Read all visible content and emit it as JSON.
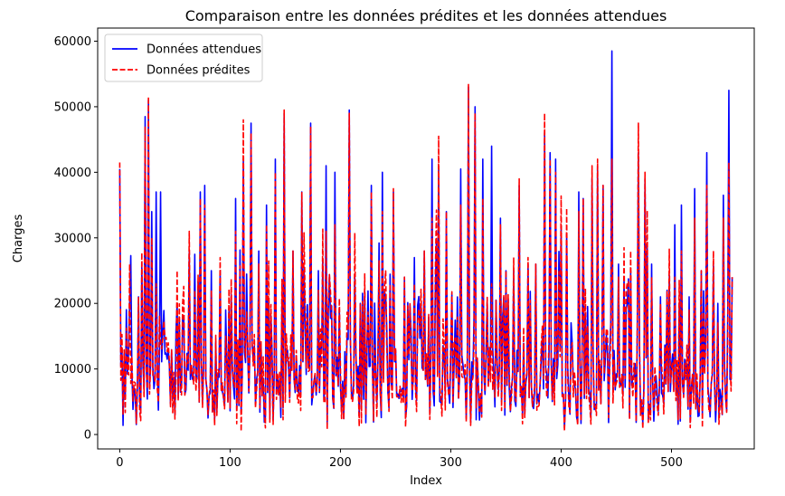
{
  "chart_data": {
    "type": "line",
    "title": "Comparaison entre les données prédites et les données attendues",
    "xlabel": "Index",
    "ylabel": "Charges",
    "xlim": [
      -20,
      575
    ],
    "ylim": [
      -2200,
      62000
    ],
    "xticks": [
      0,
      100,
      200,
      300,
      400,
      500
    ],
    "yticks": [
      0,
      10000,
      20000,
      30000,
      40000,
      50000,
      60000
    ],
    "grid": false,
    "legend": "top-left",
    "n_points": 556,
    "series": [
      {
        "name": "Données attendues",
        "color": "#0000ff",
        "linestyle": "solid",
        "peaks": [
          [
            0,
            40500
          ],
          [
            3,
            1400
          ],
          [
            9,
            20000
          ],
          [
            17,
            21000
          ],
          [
            23,
            48500
          ],
          [
            26,
            51000
          ],
          [
            29,
            34000
          ],
          [
            33,
            37000
          ],
          [
            37,
            37000
          ],
          [
            52,
            20000
          ],
          [
            57,
            18000
          ],
          [
            63,
            28000
          ],
          [
            68,
            27500
          ],
          [
            73,
            37000
          ],
          [
            77,
            38000
          ],
          [
            83,
            25000
          ],
          [
            91,
            25000
          ],
          [
            96,
            19000
          ],
          [
            105,
            36000
          ],
          [
            112,
            42000
          ],
          [
            119,
            47500
          ],
          [
            126,
            28000
          ],
          [
            133,
            35000
          ],
          [
            141,
            42000
          ],
          [
            149,
            49000
          ],
          [
            157,
            28000
          ],
          [
            165,
            37000
          ],
          [
            173,
            47500
          ],
          [
            180,
            25000
          ],
          [
            187,
            41000
          ],
          [
            195,
            40000
          ],
          [
            208,
            49500
          ],
          [
            218,
            20000
          ],
          [
            228,
            38000
          ],
          [
            238,
            40000
          ],
          [
            248,
            37000
          ],
          [
            258,
            24000
          ],
          [
            267,
            27000
          ],
          [
            276,
            28000
          ],
          [
            283,
            42000
          ],
          [
            289,
            41000
          ],
          [
            296,
            34000
          ],
          [
            309,
            40500
          ],
          [
            316,
            53000
          ],
          [
            322,
            50000
          ],
          [
            329,
            42000
          ],
          [
            337,
            44000
          ],
          [
            345,
            33000
          ],
          [
            350,
            25000
          ],
          [
            357,
            25000
          ],
          [
            362,
            38000
          ],
          [
            370,
            26000
          ],
          [
            377,
            26000
          ],
          [
            385,
            46000
          ],
          [
            390,
            43000
          ],
          [
            395,
            42000
          ],
          [
            403,
            1000
          ],
          [
            410,
            14000
          ],
          [
            416,
            37000
          ],
          [
            420,
            36000
          ],
          [
            428,
            39000
          ],
          [
            433,
            41000
          ],
          [
            438,
            38000
          ],
          [
            446,
            58500
          ],
          [
            452,
            26000
          ],
          [
            457,
            24000
          ],
          [
            463,
            25000
          ],
          [
            470,
            43000
          ],
          [
            476,
            39000
          ],
          [
            482,
            26000
          ],
          [
            490,
            21000
          ],
          [
            496,
            22000
          ],
          [
            503,
            32000
          ],
          [
            509,
            35000
          ],
          [
            516,
            21000
          ],
          [
            521,
            37500
          ],
          [
            527,
            25000
          ],
          [
            532,
            43000
          ],
          [
            538,
            26000
          ],
          [
            542,
            20000
          ],
          [
            547,
            36500
          ],
          [
            552,
            52500
          ],
          [
            555,
            24000
          ]
        ]
      },
      {
        "name": "Données prédites",
        "color": "#ff0000",
        "linestyle": "dashed",
        "peaks": [
          [
            0,
            41500
          ],
          [
            3,
            3000
          ],
          [
            9,
            26000
          ],
          [
            17,
            21000
          ],
          [
            23,
            47000
          ],
          [
            26,
            51500
          ],
          [
            29,
            30000
          ],
          [
            33,
            23000
          ],
          [
            37,
            14000
          ],
          [
            52,
            25000
          ],
          [
            57,
            20000
          ],
          [
            63,
            31000
          ],
          [
            68,
            22000
          ],
          [
            73,
            36000
          ],
          [
            77,
            35000
          ],
          [
            83,
            22000
          ],
          [
            91,
            27000
          ],
          [
            96,
            15000
          ],
          [
            105,
            31000
          ],
          [
            110,
            500
          ],
          [
            112,
            48000
          ],
          [
            119,
            46000
          ],
          [
            126,
            26000
          ],
          [
            133,
            32000
          ],
          [
            141,
            40000
          ],
          [
            149,
            49500
          ],
          [
            157,
            28000
          ],
          [
            165,
            37000
          ],
          [
            173,
            47000
          ],
          [
            180,
            22000
          ],
          [
            187,
            31000
          ],
          [
            195,
            32000
          ],
          [
            208,
            49000
          ],
          [
            218,
            20000
          ],
          [
            228,
            37000
          ],
          [
            238,
            34000
          ],
          [
            248,
            37500
          ],
          [
            258,
            24000
          ],
          [
            267,
            23000
          ],
          [
            276,
            28000
          ],
          [
            283,
            33000
          ],
          [
            289,
            45500
          ],
          [
            296,
            34000
          ],
          [
            309,
            35000
          ],
          [
            316,
            53500
          ],
          [
            322,
            49000
          ],
          [
            329,
            36000
          ],
          [
            337,
            23000
          ],
          [
            345,
            32000
          ],
          [
            350,
            25000
          ],
          [
            357,
            27000
          ],
          [
            362,
            39000
          ],
          [
            370,
            27000
          ],
          [
            377,
            26000
          ],
          [
            385,
            49000
          ],
          [
            390,
            42000
          ],
          [
            395,
            40000
          ],
          [
            403,
            500
          ],
          [
            410,
            14000
          ],
          [
            416,
            34000
          ],
          [
            420,
            36000
          ],
          [
            428,
            41000
          ],
          [
            433,
            42000
          ],
          [
            438,
            38000
          ],
          [
            446,
            42000
          ],
          [
            452,
            24000
          ],
          [
            457,
            28500
          ],
          [
            463,
            28000
          ],
          [
            470,
            47500
          ],
          [
            476,
            40000
          ],
          [
            482,
            24000
          ],
          [
            490,
            20000
          ],
          [
            496,
            22000
          ],
          [
            503,
            24000
          ],
          [
            509,
            28000
          ],
          [
            516,
            19000
          ],
          [
            521,
            33000
          ],
          [
            527,
            25000
          ],
          [
            532,
            38000
          ],
          [
            538,
            28000
          ],
          [
            542,
            17000
          ],
          [
            547,
            33000
          ],
          [
            552,
            41500
          ],
          [
            555,
            24000
          ]
        ]
      }
    ]
  }
}
